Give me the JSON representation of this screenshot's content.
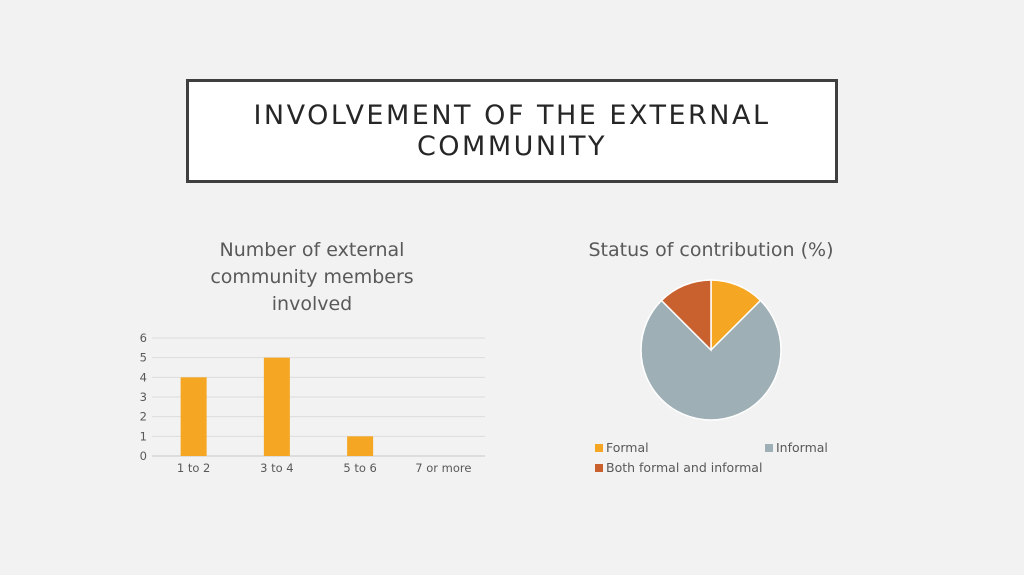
{
  "slide": {
    "title": "INVOLVEMENT OF THE EXTERNAL COMMUNITY"
  },
  "chart_data": [
    {
      "type": "bar",
      "title": "Number of external community members involved",
      "categories": [
        "1 to 2",
        "3 to 4",
        "5 to 6",
        "7 or more"
      ],
      "values": [
        4,
        5,
        1,
        0
      ],
      "ylim": [
        0,
        6
      ],
      "yticks": [
        "0",
        "1",
        "2",
        "3",
        "4",
        "5",
        "6"
      ],
      "grid": true,
      "color": "#f5a623"
    },
    {
      "type": "pie",
      "title": "Status of contribution (%)",
      "labels": [
        "Formal",
        "Informal",
        "Both formal and informal"
      ],
      "values": [
        12.5,
        75,
        12.5
      ],
      "colors": [
        "#f5a623",
        "#9eafb5",
        "#c8612e"
      ],
      "legend": "bottom"
    }
  ]
}
